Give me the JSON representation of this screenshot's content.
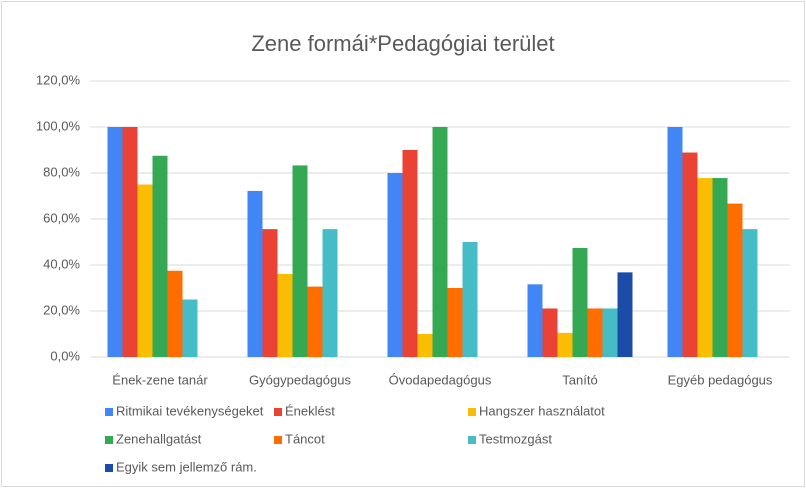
{
  "chart_data": {
    "type": "bar",
    "title": "Zene formái*Pedagógiai terület",
    "categories": [
      "Ének-zene tanár",
      "Gyógypedagógus",
      "Óvodapedagógus",
      "Tanító",
      "Egyéb pedagógus"
    ],
    "series": [
      {
        "name": "Ritmikai tevékenységeket",
        "color": "#4285f4",
        "values": [
          100,
          72.2,
          80,
          31.6,
          100
        ]
      },
      {
        "name": "Éneklést",
        "color": "#ea4335",
        "values": [
          100,
          55.6,
          90,
          21.1,
          88.9
        ]
      },
      {
        "name": "Hangszer használatot",
        "color": "#fbbc04",
        "values": [
          75,
          36.1,
          10,
          10.5,
          77.8
        ]
      },
      {
        "name": "Zenehallgatást",
        "color": "#34a853",
        "values": [
          87.5,
          83.3,
          100,
          47.4,
          77.8
        ]
      },
      {
        "name": "Táncot",
        "color": "#ff6d01",
        "values": [
          37.5,
          30.6,
          30,
          21.1,
          66.7
        ]
      },
      {
        "name": "Testmozgást",
        "color": "#46bdc6",
        "values": [
          25,
          55.6,
          50,
          21.1,
          55.6
        ]
      },
      {
        "name": "Egyik sem jellemző rám.",
        "color": "#1a4ca8",
        "values": [
          0,
          0,
          0,
          36.8,
          0
        ]
      }
    ],
    "ylim": [
      0,
      120
    ],
    "yticks": [
      {
        "value": 0,
        "label": "0,0%"
      },
      {
        "value": 20,
        "label": "20,0%"
      },
      {
        "value": 40,
        "label": "40,0%"
      },
      {
        "value": 60,
        "label": "60,0%"
      },
      {
        "value": 80,
        "label": "80,0%"
      },
      {
        "value": 100,
        "label": "100,0%"
      },
      {
        "value": 120,
        "label": "120,0%"
      }
    ],
    "grid": true,
    "legend": "bottom"
  }
}
